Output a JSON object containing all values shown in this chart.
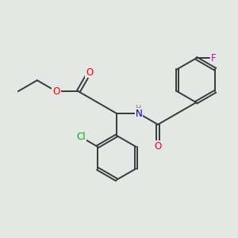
{
  "background_color": "#e4e8e4",
  "bond_color": "#3a3a3a",
  "bond_width": 1.4,
  "atom_colors": {
    "O": "#ff0000",
    "N": "#0000cc",
    "Cl": "#00aa00",
    "F": "#cc00cc",
    "C": "#3a3a3a",
    "H": "#888888"
  },
  "font_size": 8.5
}
